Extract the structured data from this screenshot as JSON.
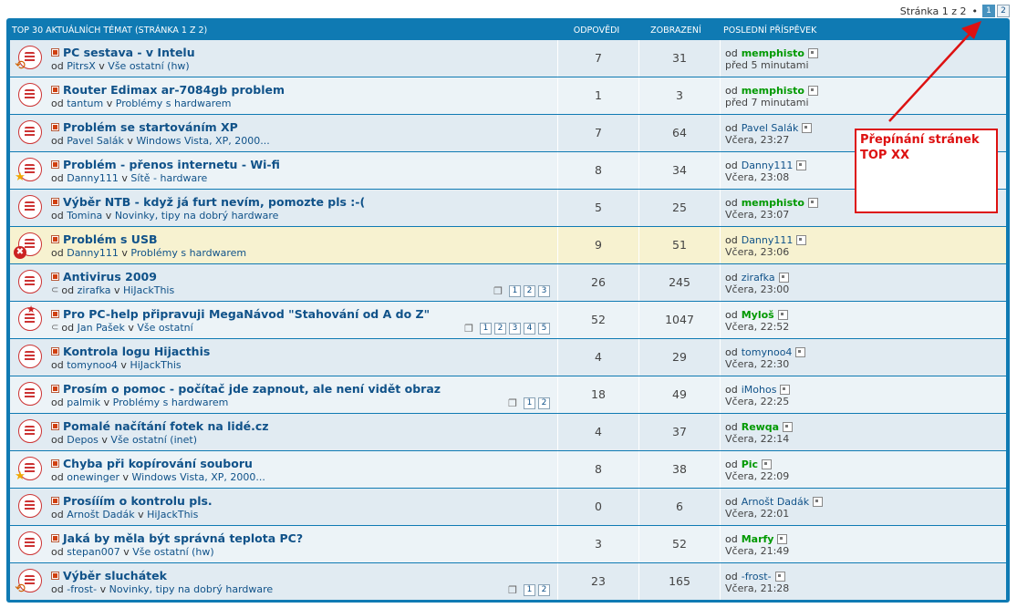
{
  "pagination": {
    "label": "Stránka 1 z 2",
    "bullet": "•",
    "pages": [
      "1",
      "2"
    ],
    "current": "1"
  },
  "header": {
    "topics": "TOP 30 AKTUÁLNÍCH TÉMAT (STRÁNKA 1 Z 2)",
    "replies": "ODPOVĚDI",
    "views": "ZOBRAZENÍ",
    "last_post": "POSLEDNÍ PŘÍSPĚVEK"
  },
  "labels": {
    "by": "od",
    "in": "v"
  },
  "rows": [
    {
      "title": "PC sestava - v Intelu",
      "author": "PitrsX",
      "forum": "Vše ostatní (hw)",
      "replies": "7",
      "views": "31",
      "last_author": "memphisto",
      "last_author_green": true,
      "last_time": "před 5 minutami",
      "badge": "moved",
      "pages": []
    },
    {
      "title": "Router Edimax ar-7084gb problem",
      "author": "tantum",
      "forum": "Problémy s hardwarem",
      "replies": "1",
      "views": "3",
      "last_author": "memphisto",
      "last_author_green": true,
      "last_time": "před 7 minutami",
      "badge": "",
      "pages": []
    },
    {
      "title": "Problém se startováním XP",
      "author": "Pavel Salák",
      "forum": "Windows Vista, XP, 2000...",
      "replies": "7",
      "views": "64",
      "last_author": "Pavel Salák",
      "last_author_green": false,
      "last_time": "Včera, 23:27",
      "badge": "",
      "pages": []
    },
    {
      "title": "Problém - přenos internetu - Wi-fi",
      "author": "Danny111",
      "forum": "Sítě - hardware",
      "replies": "8",
      "views": "34",
      "last_author": "Danny111",
      "last_author_green": false,
      "last_time": "Včera, 23:08",
      "badge": "star",
      "pages": []
    },
    {
      "title": "Výběr NTB - když já furt nevím, pomozte pls :-(",
      "author": "Tomina",
      "forum": "Novinky, tipy na dobrý hardware",
      "replies": "5",
      "views": "25",
      "last_author": "memphisto",
      "last_author_green": true,
      "last_time": "Včera, 23:07",
      "badge": "",
      "pages": []
    },
    {
      "title": "Problém s USB",
      "author": "Danny111",
      "forum": "Problémy s hardwarem",
      "replies": "9",
      "views": "51",
      "last_author": "Danny111",
      "last_author_green": false,
      "last_time": "Včera, 23:06",
      "badge": "locked",
      "pages": [],
      "highlight": true
    },
    {
      "title": "Antivirus 2009",
      "author": "zirafka",
      "forum": "HiJackThis",
      "replies": "26",
      "views": "245",
      "last_author": "zirafka",
      "last_author_green": false,
      "last_time": "Včera, 23:00",
      "badge": "",
      "pages": [
        "1",
        "2",
        "3"
      ],
      "attach": true
    },
    {
      "title": "Pro PC-help připravuji MegaNávod \"Stahování od A do Z\"",
      "author": "Jan Pašek",
      "forum": "Vše ostatní",
      "replies": "52",
      "views": "1047",
      "last_author": "Myloš",
      "last_author_green": true,
      "last_time": "Včera, 22:52",
      "badge": "hot",
      "pages": [
        "1",
        "2",
        "3",
        "4",
        "5"
      ],
      "attach": true
    },
    {
      "title": "Kontrola logu Hijacthis",
      "author": "tomynoo4",
      "forum": "HiJackThis",
      "replies": "4",
      "views": "29",
      "last_author": "tomynoo4",
      "last_author_green": false,
      "last_time": "Včera, 22:30",
      "badge": "",
      "pages": []
    },
    {
      "title": "Prosím o pomoc - počítač jde zapnout, ale není vidět obraz",
      "author": "palmik",
      "forum": "Problémy s hardwarem",
      "replies": "18",
      "views": "49",
      "last_author": "iMohos",
      "last_author_green": false,
      "last_time": "Včera, 22:25",
      "badge": "",
      "pages": [
        "1",
        "2"
      ]
    },
    {
      "title": "Pomalé načítání fotek na lidé.cz",
      "author": "Depos",
      "forum": "Vše ostatní (inet)",
      "replies": "4",
      "views": "37",
      "last_author": "Rewqa",
      "last_author_green": true,
      "last_time": "Včera, 22:14",
      "badge": "",
      "pages": []
    },
    {
      "title": "Chyba při kopírování souboru",
      "author": "onewinger",
      "forum": "Windows Vista, XP, 2000...",
      "replies": "8",
      "views": "38",
      "last_author": "Pic",
      "last_author_green": true,
      "last_time": "Včera, 22:09",
      "badge": "star",
      "pages": []
    },
    {
      "title": "Prosííím o kontrolu pls.",
      "author": "Arnošt Dadák",
      "forum": "HiJackThis",
      "replies": "0",
      "views": "6",
      "last_author": "Arnošt Dadák",
      "last_author_green": false,
      "last_time": "Včera, 22:01",
      "badge": "",
      "pages": []
    },
    {
      "title": "Jaká by měla být správná teplota PC?",
      "author": "stepan007",
      "forum": "Vše ostatní (hw)",
      "replies": "3",
      "views": "52",
      "last_author": "Marfy",
      "last_author_green": true,
      "last_time": "Včera, 21:49",
      "badge": "",
      "pages": []
    },
    {
      "title": "Výběr sluchátek",
      "author": "-frost-",
      "forum": "Novinky, tipy na dobrý hardware",
      "replies": "23",
      "views": "165",
      "last_author": "-frost-",
      "last_author_green": false,
      "last_time": "Včera, 21:28",
      "badge": "moved",
      "pages": [
        "1",
        "2"
      ]
    }
  ],
  "annotation": {
    "line1": "Přepínání stránek",
    "line2": "TOP XX",
    "color": "#dd1111"
  },
  "colors": {
    "header_bg": "#0f7ab3",
    "row_bg": "#e1ebf2",
    "row_alt": "#ecf3f7",
    "highlight": "#f7f2d0",
    "link": "#105289",
    "green": "#009900"
  }
}
